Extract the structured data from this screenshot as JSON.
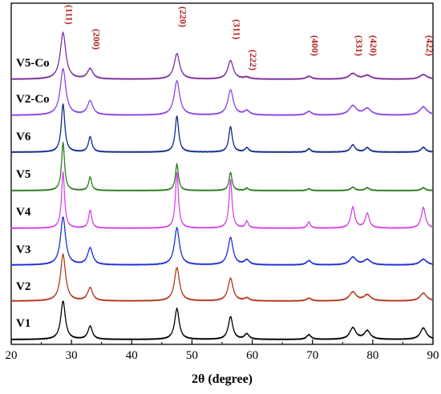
{
  "chart_data": {
    "type": "line",
    "xlabel": "2θ (degree)",
    "ylabel": "",
    "xlim": [
      20,
      90
    ],
    "x_ticks": [
      "20",
      "30",
      "40",
      "50",
      "60",
      "70",
      "80",
      "90"
    ],
    "grid": false,
    "peak_label_color": "#b22222",
    "peaks": [
      {
        "label": "(111)",
        "x": 28.6
      },
      {
        "label": "(200)",
        "x": 33.1
      },
      {
        "label": "(220)",
        "x": 47.5
      },
      {
        "label": "(311)",
        "x": 56.4
      },
      {
        "label": "(222)",
        "x": 59.1
      },
      {
        "label": "(400)",
        "x": 69.4
      },
      {
        "label": "(331)",
        "x": 76.7
      },
      {
        "label": "(420)",
        "x": 79.1
      },
      {
        "label": "(422)",
        "x": 88.4
      }
    ],
    "series": [
      {
        "name": "V5-Co",
        "color": "#7b2f9e",
        "intensities": [
          1.0,
          0.22,
          0.55,
          0.4,
          0.04,
          0.06,
          0.12,
          0.08,
          0.1
        ],
        "width": 0.55
      },
      {
        "name": "V2-Co",
        "color": "#8a46e6",
        "intensities": [
          1.0,
          0.3,
          0.74,
          0.54,
          0.09,
          0.08,
          0.2,
          0.14,
          0.18
        ],
        "width": 0.55
      },
      {
        "name": "V6",
        "color": "#102a8a",
        "intensities": [
          1.0,
          0.32,
          0.75,
          0.53,
          0.09,
          0.07,
          0.15,
          0.09,
          0.1
        ],
        "width": 0.35
      },
      {
        "name": "V5",
        "color": "#2d7d1e",
        "intensities": [
          1.0,
          0.28,
          0.55,
          0.38,
          0.05,
          0.04,
          0.07,
          0.06,
          0.06
        ],
        "width": 0.3
      },
      {
        "name": "V4",
        "color": "#d346e6",
        "intensities": [
          1.0,
          0.32,
          1.0,
          0.87,
          0.12,
          0.11,
          0.37,
          0.26,
          0.37
        ],
        "width": 0.3
      },
      {
        "name": "V3",
        "color": "#1f2fd6",
        "intensities": [
          1.0,
          0.35,
          0.77,
          0.57,
          0.1,
          0.09,
          0.16,
          0.11,
          0.12
        ],
        "width": 0.5
      },
      {
        "name": "V2",
        "color": "#b03a1a",
        "intensities": [
          1.0,
          0.28,
          0.72,
          0.49,
          0.06,
          0.06,
          0.19,
          0.13,
          0.17
        ],
        "width": 0.5
      },
      {
        "name": "V1",
        "color": "#000000",
        "intensities": [
          1.0,
          0.34,
          0.8,
          0.59,
          0.14,
          0.12,
          0.3,
          0.22,
          0.3
        ],
        "width": 0.45
      }
    ]
  }
}
